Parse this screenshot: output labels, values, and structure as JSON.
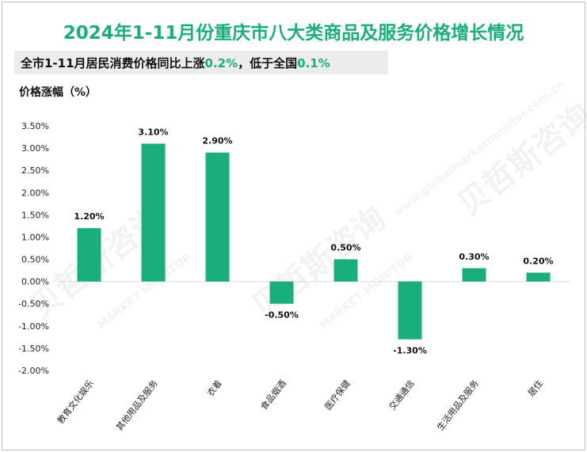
{
  "title": "2024年1-11月份重庆市八大类商品及服务价格增长情况",
  "subtitle": {
    "prefix": "全市1-11月居民消费价格同比上涨",
    "value1": "0.2%",
    "middle": "，低于全国",
    "value2": "0.1%"
  },
  "watermark": {
    "brand": "贝哲斯咨询",
    "sub": "MARKET MONITOR",
    "url": "www.globalmarketmonitor.com.cn"
  },
  "colors": {
    "bar": "#1aaf7a",
    "accent": "#1aaf7a"
  },
  "chart_data": {
    "type": "bar",
    "title": "2024年1-11月份重庆市八大类商品及服务价格增长情况",
    "ylabel": "价格涨幅（%）",
    "xlabel": "",
    "categories": [
      "教育文化娱乐",
      "其他用品及服务",
      "衣着",
      "食品烟酒",
      "医疗保健",
      "交通通信",
      "生活用品及服务",
      "居住"
    ],
    "values": [
      1.2,
      3.1,
      2.9,
      -0.5,
      0.5,
      -1.3,
      0.3,
      0.2
    ],
    "value_labels": [
      "1.20%",
      "3.10%",
      "2.90%",
      "-0.50%",
      "0.50%",
      "-1.30%",
      "0.30%",
      "0.20%"
    ],
    "ylim": [
      -2.0,
      3.5
    ],
    "yticks": [
      3.5,
      3.0,
      2.5,
      2.0,
      1.5,
      1.0,
      0.5,
      0.0,
      -0.5,
      -1.0,
      -1.5,
      -2.0
    ],
    "ytick_labels": [
      "3.50%",
      "3.00%",
      "2.50%",
      "2.00%",
      "1.50%",
      "1.00%",
      "0.50%",
      "0.00%",
      "-0.50%",
      "-1.00%",
      "-1.50%",
      "-2.00%"
    ],
    "grid": false,
    "legend": "none"
  }
}
